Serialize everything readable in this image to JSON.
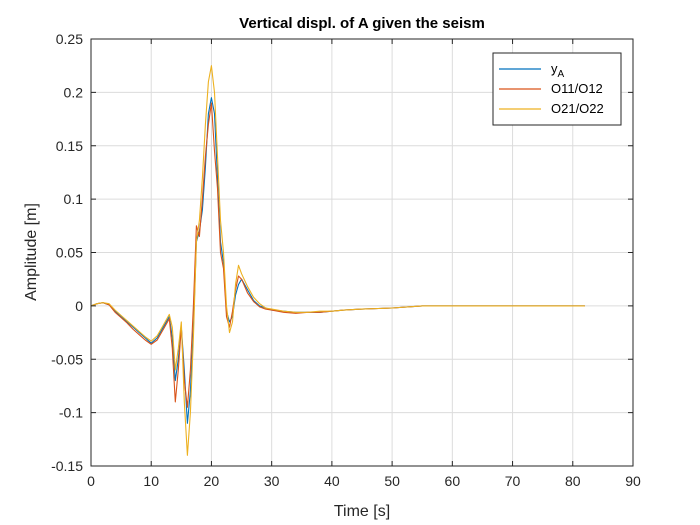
{
  "chart_data": {
    "type": "line",
    "title": "Vertical displ. of A given the seism",
    "xlabel": "Time [s]",
    "ylabel": "Amplitude [m]",
    "xlim": [
      0,
      90
    ],
    "ylim": [
      -0.15,
      0.25
    ],
    "xticks": [
      "0",
      "10",
      "20",
      "30",
      "40",
      "50",
      "60",
      "70",
      "80",
      "90"
    ],
    "yticks": [
      "-0.15",
      "-0.1",
      "-0.05",
      "0",
      "0.05",
      "0.1",
      "0.15",
      "0.2",
      "0.25"
    ],
    "grid": true,
    "legend_position": "top-right",
    "series": [
      {
        "name": "y",
        "name_subscript": "A",
        "color": "#0072BD",
        "x": [
          0,
          1,
          2,
          3,
          4,
          5,
          6,
          7,
          8,
          9,
          10,
          11,
          12,
          13,
          13.5,
          14,
          14.5,
          15,
          15.5,
          16,
          16.5,
          17,
          17.5,
          18,
          18.5,
          19,
          19.5,
          20,
          20.5,
          21,
          21.5,
          22,
          22.5,
          23,
          23.5,
          24,
          24.5,
          25,
          26,
          27,
          28,
          29,
          30,
          32,
          34,
          36,
          38,
          40,
          42,
          45,
          50,
          55,
          60,
          70,
          82
        ],
        "y": [
          0,
          0.002,
          0.003,
          0.001,
          -0.005,
          -0.01,
          -0.015,
          -0.02,
          -0.025,
          -0.03,
          -0.035,
          -0.03,
          -0.02,
          -0.01,
          -0.03,
          -0.07,
          -0.05,
          -0.02,
          -0.06,
          -0.11,
          -0.08,
          -0.02,
          0.06,
          0.07,
          0.09,
          0.13,
          0.18,
          0.195,
          0.18,
          0.12,
          0.06,
          0.04,
          -0.005,
          -0.015,
          -0.01,
          0.01,
          0.02,
          0.025,
          0.015,
          0.005,
          0,
          -0.002,
          -0.004,
          -0.005,
          -0.006,
          -0.006,
          -0.006,
          -0.005,
          -0.004,
          -0.003,
          -0.002,
          0,
          0,
          0,
          0
        ]
      },
      {
        "name": "O11/O12",
        "color": "#D95319",
        "x": [
          0,
          1,
          2,
          3,
          4,
          5,
          6,
          7,
          8,
          9,
          10,
          11,
          12,
          13,
          13.5,
          14,
          14.5,
          15,
          15.5,
          16,
          16.5,
          17,
          17.5,
          18,
          18.5,
          19,
          19.5,
          20,
          20.5,
          21,
          21.5,
          22,
          22.5,
          23,
          23.5,
          24,
          24.5,
          25,
          26,
          27,
          28,
          29,
          30,
          32,
          34,
          36,
          38,
          40,
          42,
          45,
          50,
          55,
          60,
          70,
          82
        ],
        "y": [
          0,
          0.002,
          0.003,
          0.001,
          -0.006,
          -0.011,
          -0.016,
          -0.022,
          -0.027,
          -0.032,
          -0.036,
          -0.032,
          -0.022,
          -0.012,
          -0.04,
          -0.09,
          -0.06,
          -0.02,
          -0.07,
          -0.095,
          -0.06,
          0,
          0.075,
          0.065,
          0.1,
          0.14,
          0.17,
          0.19,
          0.145,
          0.11,
          0.05,
          0.035,
          -0.01,
          -0.02,
          -0.005,
          0.015,
          0.028,
          0.025,
          0.012,
          0.004,
          -0.001,
          -0.003,
          -0.004,
          -0.006,
          -0.007,
          -0.006,
          -0.006,
          -0.005,
          -0.004,
          -0.003,
          -0.002,
          0,
          0,
          0,
          0
        ]
      },
      {
        "name": "O21/O22",
        "color": "#EDB120",
        "x": [
          0,
          1,
          2,
          3,
          4,
          5,
          6,
          7,
          8,
          9,
          10,
          11,
          12,
          13,
          13.5,
          14,
          14.5,
          15,
          15.5,
          16,
          16.5,
          17,
          17.5,
          18,
          18.5,
          19,
          19.5,
          20,
          20.5,
          21,
          21.5,
          22,
          22.5,
          23,
          23.5,
          24,
          24.5,
          25,
          26,
          27,
          28,
          29,
          30,
          32,
          34,
          36,
          38,
          40,
          42,
          45,
          50,
          55,
          60,
          70,
          82
        ],
        "y": [
          0,
          0.002,
          0.003,
          0.002,
          -0.004,
          -0.009,
          -0.014,
          -0.019,
          -0.024,
          -0.029,
          -0.033,
          -0.028,
          -0.018,
          -0.008,
          -0.02,
          -0.06,
          -0.04,
          -0.015,
          -0.09,
          -0.14,
          -0.1,
          -0.03,
          0.06,
          0.08,
          0.12,
          0.17,
          0.21,
          0.225,
          0.2,
          0.14,
          0.08,
          0.05,
          0,
          -0.025,
          -0.015,
          0.02,
          0.038,
          0.03,
          0.018,
          0.008,
          0.002,
          -0.002,
          -0.003,
          -0.005,
          -0.006,
          -0.006,
          -0.005,
          -0.005,
          -0.004,
          -0.003,
          -0.002,
          0,
          0,
          0,
          0
        ]
      }
    ]
  }
}
